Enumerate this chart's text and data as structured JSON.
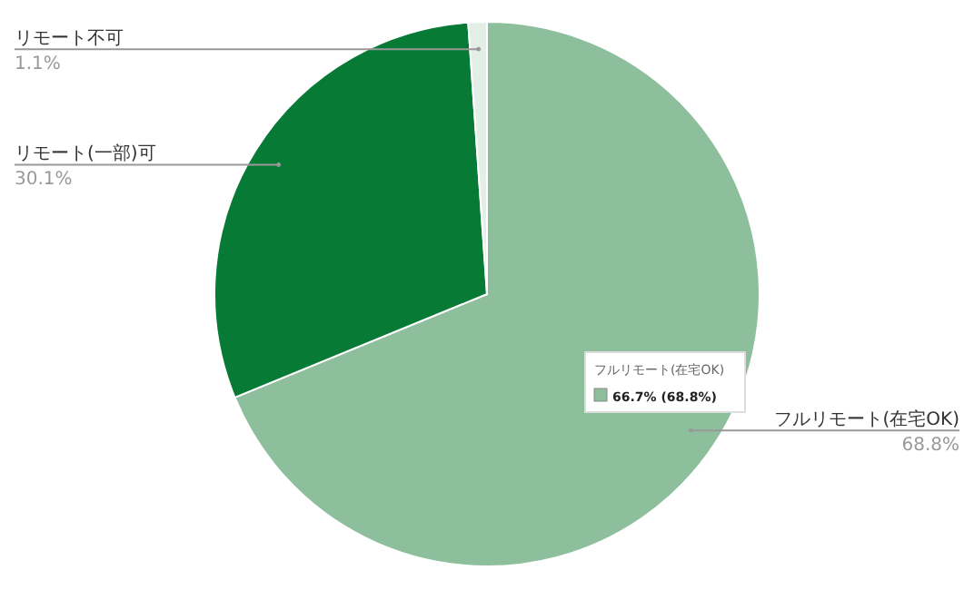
{
  "chart_data": {
    "type": "pie",
    "categories": [
      "フルリモート(在宅OK)",
      "リモート(一部)可",
      "リモート不可"
    ],
    "values": [
      68.8,
      30.1,
      1.1
    ],
    "colors": [
      "#8dbf9c",
      "#077a35",
      "#e3eee6"
    ],
    "value_labels": [
      "68.8%",
      "30.1%",
      "1.1%"
    ],
    "annotations": [
      "フルリモート(在宅OK)",
      "66.7% (68.8%)"
    ]
  }
}
